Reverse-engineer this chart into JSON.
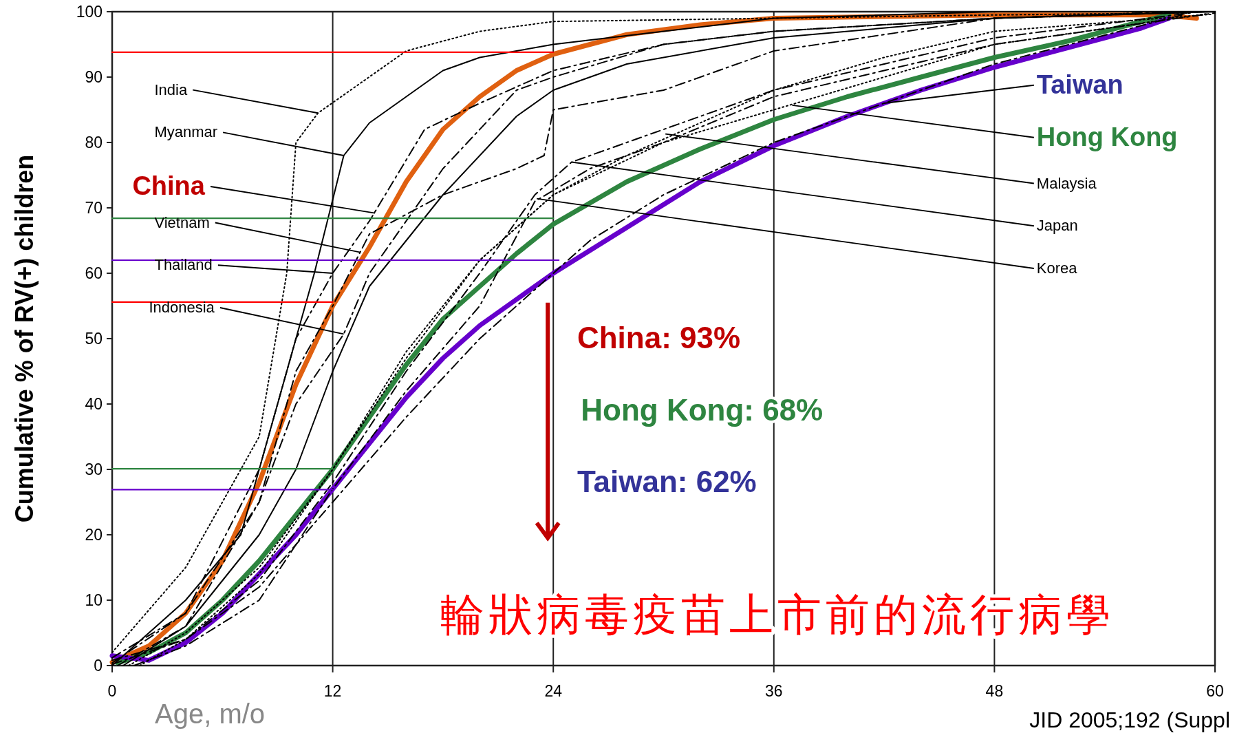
{
  "chart_data": {
    "type": "line",
    "title": "輪狀病毒疫苗上市前的流行病學",
    "xlabel": "Age, m/o",
    "ylabel": "Cumulative % of RV(+) children",
    "xlim": [
      0,
      60
    ],
    "ylim": [
      0,
      100
    ],
    "xticks": [
      0,
      12,
      24,
      36,
      48,
      60
    ],
    "yticks": [
      0,
      10,
      20,
      30,
      40,
      50,
      60,
      70,
      80,
      90,
      100
    ],
    "grid": "x",
    "marker": "none",
    "annotations": [
      {
        "text": "China",
        "x": 14.3,
        "y": 69.2
      },
      {
        "text": "Hong Kong",
        "x": 37,
        "y": 85.7
      },
      {
        "text": "Taiwan",
        "x": 42,
        "y": 86
      },
      {
        "text": "India",
        "x": 11.2,
        "y": 84.5
      },
      {
        "text": "Myanmar",
        "x": 12.6,
        "y": 78
      },
      {
        "text": "Vietnam",
        "x": 13.5,
        "y": 63.2
      },
      {
        "text": "Thailand",
        "x": 12,
        "y": 60
      },
      {
        "text": "Indonesia",
        "x": 12.6,
        "y": 50.7
      },
      {
        "text": "Malaysia",
        "x": 30.1,
        "y": 81.3
      },
      {
        "text": "Japan",
        "x": 25,
        "y": 77
      },
      {
        "text": "Korea",
        "x": 23.1,
        "y": 71.4
      },
      "China: 93%",
      "Hong Kong: 68%",
      "Taiwan: 62%",
      "JID 2005;192 (Suppl"
    ],
    "series": [
      {
        "color": "#e06010",
        "line_style": "solid",
        "x": [
          0,
          2,
          4,
          6,
          8,
          10,
          12,
          14,
          16,
          18,
          20,
          22,
          24,
          28,
          32,
          36,
          48,
          57,
          59
        ],
        "values": [
          0.5,
          3,
          8,
          16,
          28,
          43,
          55,
          64,
          74,
          82,
          87,
          91,
          93.5,
          96.5,
          98,
          99,
          99.5,
          99.5,
          99
        ]
      },
      {
        "color": "#2e8540",
        "line_style": "solid",
        "x": [
          0.3,
          2,
          4,
          6,
          8,
          10,
          12,
          14,
          16,
          18,
          20,
          22,
          24,
          28,
          32,
          36,
          40,
          44,
          48,
          52,
          56,
          57.5
        ],
        "values": [
          0.4,
          2,
          5,
          10,
          16,
          23,
          30,
          38,
          46,
          53,
          58,
          63,
          67.5,
          74,
          79,
          83.5,
          87,
          90,
          93,
          95.5,
          98.5,
          99.5
        ]
      },
      {
        "color": "#6600cc",
        "line_style": "solid",
        "x": [
          0,
          2,
          4,
          6,
          8,
          10,
          12,
          14,
          16,
          18,
          20,
          22,
          24,
          28,
          32,
          36,
          40,
          44,
          48,
          52,
          56,
          57.5
        ],
        "values": [
          1.5,
          0.8,
          3.5,
          8,
          14,
          20,
          27,
          34,
          41,
          47,
          52,
          56,
          60,
          67,
          74,
          79.5,
          84,
          88,
          91.5,
          94.5,
          97.5,
          99
        ]
      },
      {
        "color": "#000000",
        "line_style": "dotted",
        "x": [
          0,
          4,
          8,
          9.5,
          10,
          11.2,
          16,
          20,
          24,
          36,
          48,
          58.5
        ],
        "values": [
          2,
          15,
          35,
          60,
          80,
          84.5,
          94,
          97,
          98.5,
          99,
          99.5,
          99.8
        ]
      },
      {
        "color": "#000000",
        "line_style": "solid",
        "x": [
          0,
          4,
          7,
          9,
          11,
          12.6,
          14,
          16,
          18,
          20,
          22,
          24,
          30,
          36,
          48,
          59
        ],
        "values": [
          0,
          10,
          20,
          40,
          60,
          78,
          83,
          87,
          91,
          93,
          94,
          95,
          97,
          99,
          100,
          100
        ]
      },
      {
        "color": "#000000",
        "line_style": "dashed",
        "x": [
          0.3,
          4,
          8,
          10,
          12,
          14,
          18,
          22,
          23.5,
          24,
          30,
          36,
          48,
          59.5
        ],
        "values": [
          0,
          6,
          25,
          45,
          55,
          66,
          72,
          76,
          78,
          85,
          88,
          94,
          99,
          100
        ]
      },
      {
        "color": "#000000",
        "line_style": "solid",
        "x": [
          0.6,
          4,
          8,
          10,
          12,
          14,
          18,
          22,
          24,
          28,
          36,
          48,
          60
        ],
        "values": [
          0,
          6,
          20,
          30,
          45,
          58,
          72,
          84,
          88,
          92,
          96,
          99,
          100
        ]
      },
      {
        "color": "#000000",
        "line_style": "dashed",
        "x": [
          0,
          4,
          8,
          10,
          12.6,
          14,
          18,
          22,
          24,
          30,
          36,
          48,
          58
        ],
        "values": [
          0.4,
          8,
          25,
          40,
          50.7,
          60,
          76,
          88,
          90,
          95,
          97,
          99,
          100
        ]
      },
      {
        "color": "#000000",
        "line_style": "dotted",
        "x": [
          0.9,
          4,
          8,
          12,
          16,
          20,
          24,
          28,
          32,
          36,
          42,
          48,
          59.8
        ],
        "values": [
          0,
          5,
          15,
          30,
          48,
          62,
          72,
          78,
          83,
          88,
          93,
          97,
          99.6
        ]
      },
      {
        "color": "#000000",
        "line_style": "dashed",
        "x": [
          0,
          4,
          8,
          12,
          16,
          20,
          23,
          25,
          30,
          36,
          48,
          59.2
        ],
        "values": [
          0.8,
          4,
          13,
          28,
          45,
          60,
          72,
          77,
          82,
          88,
          96,
          100
        ]
      },
      {
        "color": "#000000",
        "line_style": "dashed",
        "x": [
          1.2,
          4,
          8,
          12,
          16,
          20,
          23,
          26,
          30,
          36,
          48,
          60
        ],
        "values": [
          0,
          3,
          10,
          27,
          42,
          55,
          71,
          76,
          80,
          87,
          95,
          99.8
        ]
      },
      {
        "color": "#000000",
        "line_style": "dashed",
        "x": [
          0,
          4,
          8,
          10,
          12,
          14,
          17,
          20,
          24,
          30,
          36,
          48,
          58.8
        ],
        "values": [
          1.2,
          8,
          30,
          50,
          60,
          68,
          82,
          86,
          91,
          95,
          97,
          99,
          99.9
        ]
      },
      {
        "color": "#000000",
        "line_style": "dotted",
        "x": [
          1.5,
          4,
          8,
          12,
          16,
          20,
          24,
          30,
          36,
          42,
          48,
          59.6
        ],
        "values": [
          0,
          4,
          14,
          30,
          47,
          62,
          72,
          80,
          85,
          90,
          95,
          99.7
        ]
      },
      {
        "color": "#000000",
        "line_style": "dashed",
        "x": [
          0,
          4,
          8,
          12,
          16,
          20,
          24,
          26,
          30,
          36,
          42,
          48,
          58.2
        ],
        "values": [
          0.2,
          4,
          12,
          25,
          38,
          50,
          60,
          65,
          72,
          80,
          86,
          92,
          99.5
        ]
      },
      {
        "color": "#ff0000",
        "line_style": "solid",
        "x": [
          0,
          24
        ],
        "values": [
          93.8,
          93.8
        ]
      },
      {
        "color": "#2e8540",
        "line_style": "solid",
        "x": [
          0,
          24
        ],
        "values": [
          68.4,
          68.4
        ]
      },
      {
        "color": "#6600cc",
        "line_style": "solid",
        "x": [
          0,
          24.3
        ],
        "values": [
          62,
          62
        ]
      },
      {
        "color": "#ff0000",
        "line_style": "solid",
        "x": [
          0,
          12
        ],
        "values": [
          55.6,
          55.6
        ]
      },
      {
        "color": "#2e8540",
        "line_style": "solid",
        "x": [
          0,
          12
        ],
        "values": [
          30.1,
          30.1
        ]
      },
      {
        "color": "#6600cc",
        "line_style": "solid",
        "x": [
          0,
          12
        ],
        "values": [
          26.9,
          26.9
        ]
      }
    ]
  }
}
